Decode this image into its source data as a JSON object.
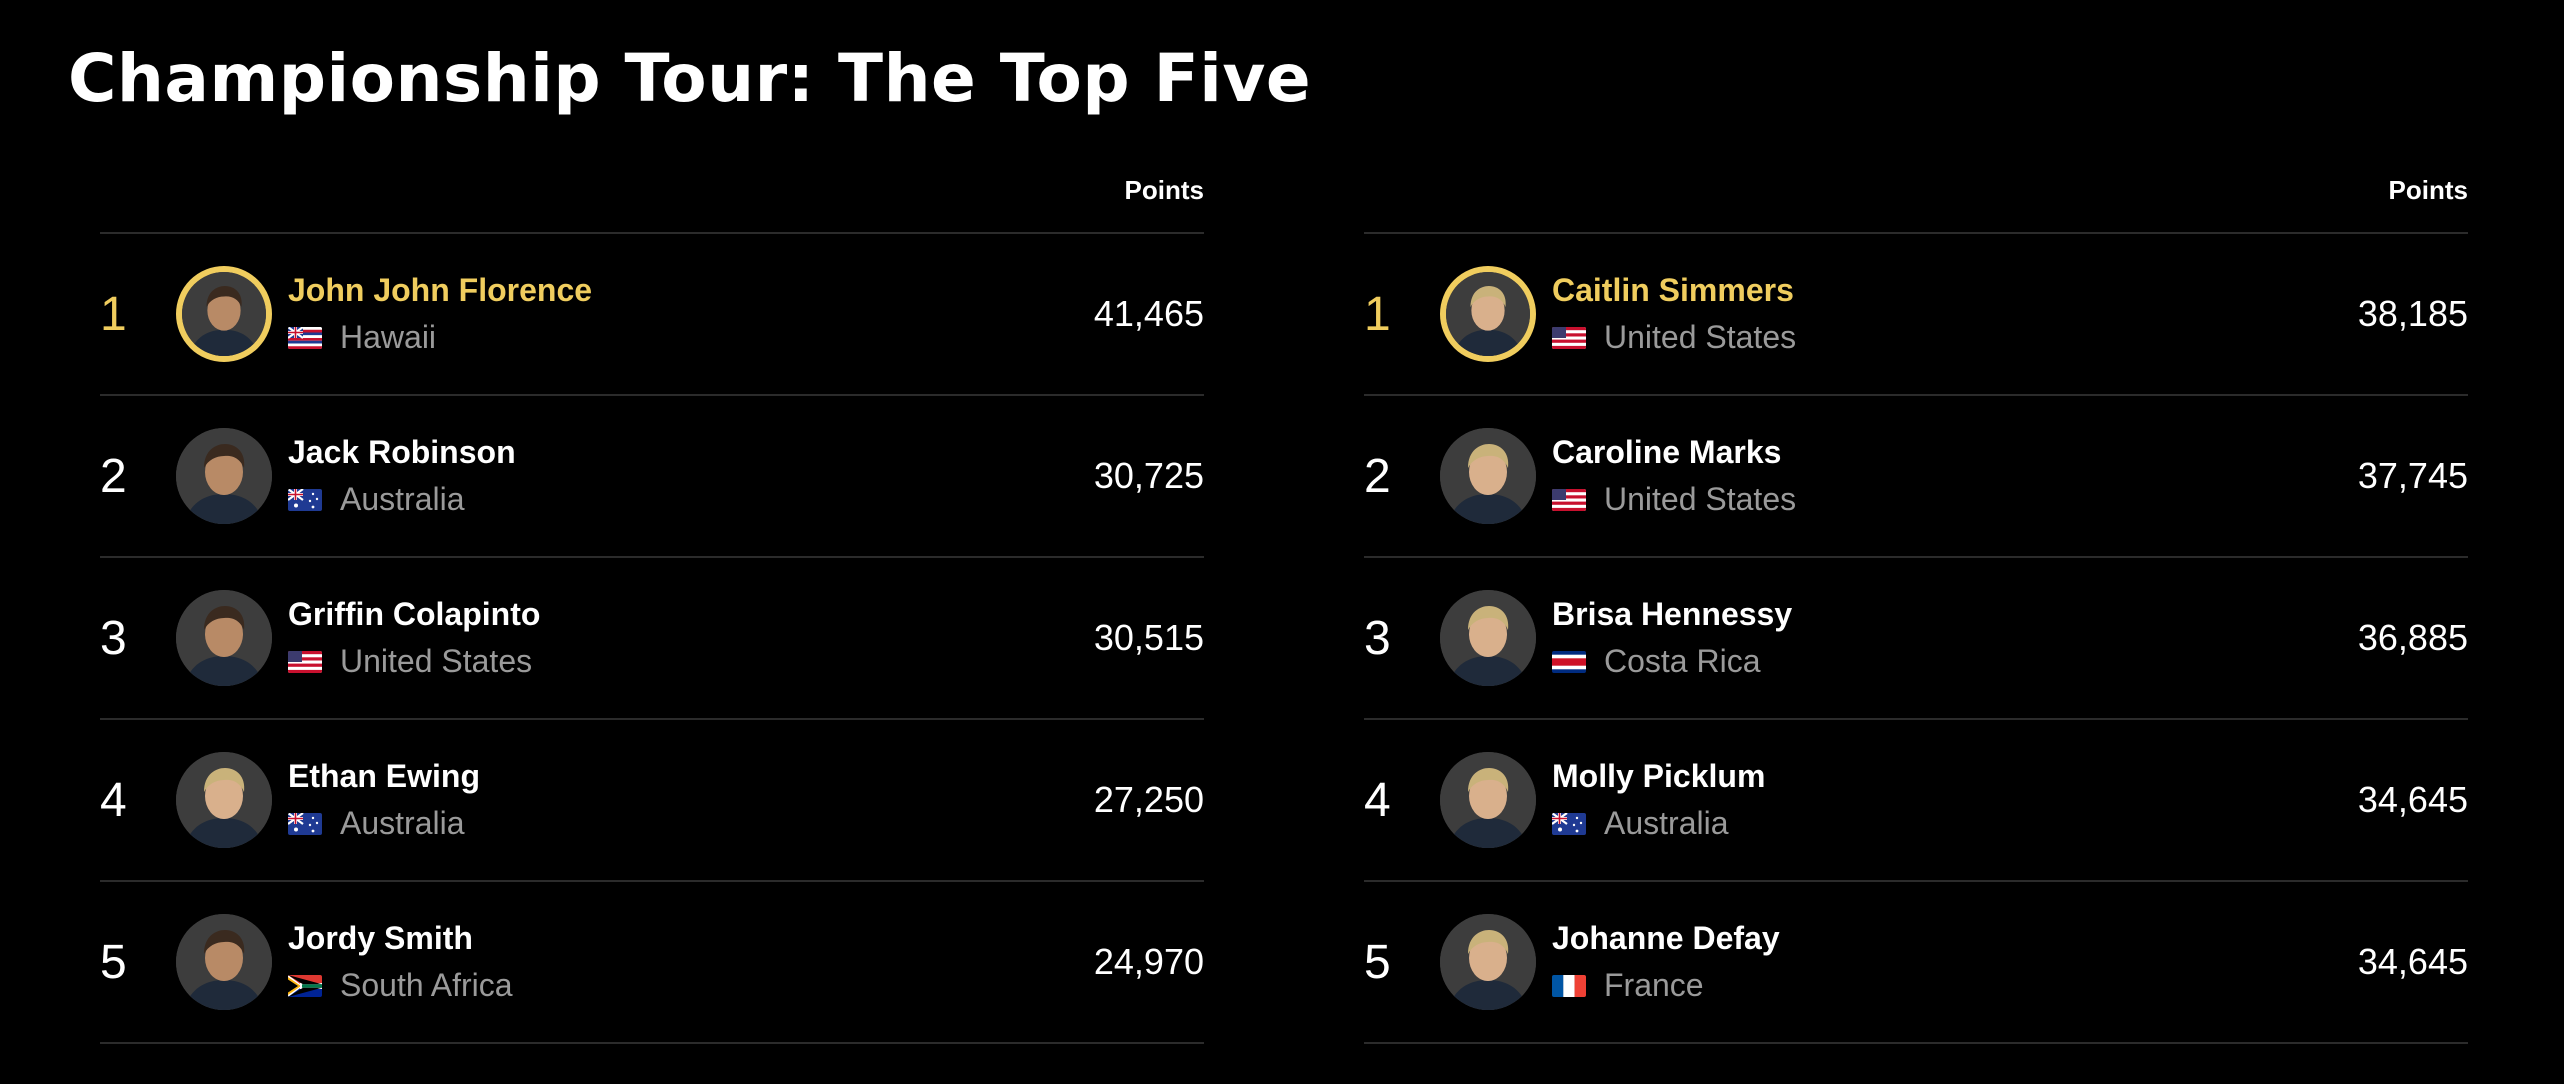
{
  "page": {
    "title": "Championship Tour: The Top Five"
  },
  "colors": {
    "accent": "#f0cd5e",
    "background": "#000000",
    "divider": "#2b2b2b",
    "muted": "#9a9a9a"
  },
  "men": {
    "points_header": "Points",
    "rows": [
      {
        "rank": "1",
        "name": "John John Florence",
        "country": "Hawaii",
        "flag": "hawaii-flag-icon",
        "points": "41,465",
        "leader": true
      },
      {
        "rank": "2",
        "name": "Jack Robinson",
        "country": "Australia",
        "flag": "australia-flag-icon",
        "points": "30,725"
      },
      {
        "rank": "3",
        "name": "Griffin Colapinto",
        "country": "United States",
        "flag": "usa-flag-icon",
        "points": "30,515"
      },
      {
        "rank": "4",
        "name": "Ethan Ewing",
        "country": "Australia",
        "flag": "australia-flag-icon",
        "points": "27,250"
      },
      {
        "rank": "5",
        "name": "Jordy Smith",
        "country": "South Africa",
        "flag": "south-africa-flag-icon",
        "points": "24,970"
      }
    ]
  },
  "women": {
    "points_header": "Points",
    "rows": [
      {
        "rank": "1",
        "name": "Caitlin Simmers",
        "country": "United States",
        "flag": "usa-flag-icon",
        "points": "38,185",
        "leader": true
      },
      {
        "rank": "2",
        "name": "Caroline Marks",
        "country": "United States",
        "flag": "usa-flag-icon",
        "points": "37,745"
      },
      {
        "rank": "3",
        "name": "Brisa Hennessy",
        "country": "Costa Rica",
        "flag": "costa-rica-flag-icon",
        "points": "36,885"
      },
      {
        "rank": "4",
        "name": "Molly Picklum",
        "country": "Australia",
        "flag": "australia-flag-icon",
        "points": "34,645"
      },
      {
        "rank": "5",
        "name": "Johanne Defay",
        "country": "France",
        "flag": "france-flag-icon",
        "points": "34,645"
      }
    ]
  }
}
